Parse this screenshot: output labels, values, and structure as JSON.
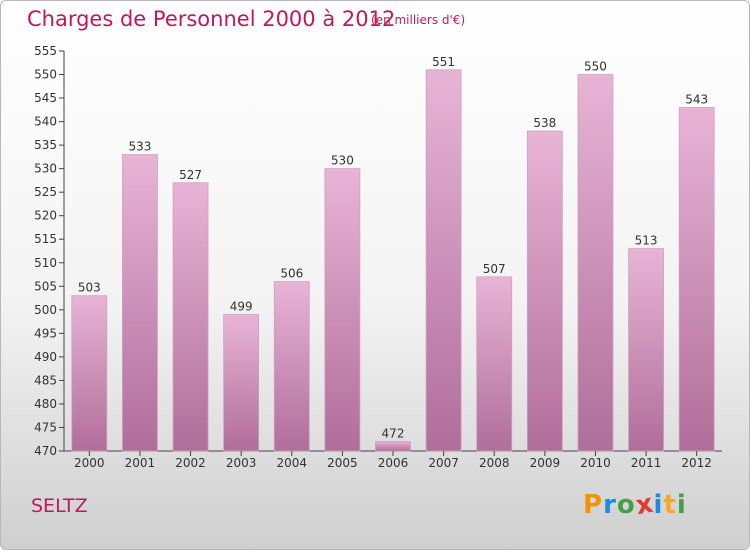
{
  "header": {
    "title": "Charges de Personnel 2000 à 2012",
    "subtitle": "(en milliers d'€)"
  },
  "footer": {
    "town": "SELTZ",
    "logo": [
      {
        "char": "P",
        "color": "#f39200"
      },
      {
        "char": "r",
        "color": "#1e88e5"
      },
      {
        "char": "o",
        "color": "#43a047"
      },
      {
        "char": "x",
        "color": "#e53935"
      },
      {
        "char": "i",
        "color": "#1e88e5"
      },
      {
        "char": "t",
        "color": "#f9a825"
      },
      {
        "char": "i",
        "color": "#43a047"
      }
    ]
  },
  "colors": {
    "bar_light": "#e8b4d6",
    "bar_dark": "#b06e9a",
    "title": "#c2185b"
  },
  "chart_data": {
    "type": "bar",
    "categories": [
      "2000",
      "2001",
      "2002",
      "2003",
      "2004",
      "2005",
      "2006",
      "2007",
      "2008",
      "2009",
      "2010",
      "2011",
      "2012"
    ],
    "values": [
      503,
      533,
      527,
      499,
      506,
      530,
      472,
      551,
      507,
      538,
      550,
      513,
      543
    ],
    "ylim": [
      470,
      555
    ],
    "ytick_step": 5,
    "grid": false
  }
}
